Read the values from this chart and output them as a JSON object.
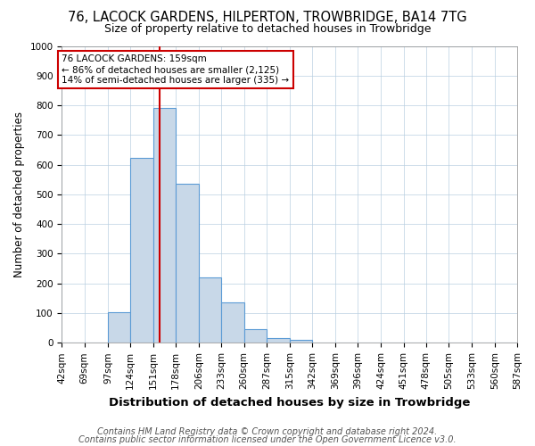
{
  "title": "76, LACOCK GARDENS, HILPERTON, TROWBRIDGE, BA14 7TG",
  "subtitle": "Size of property relative to detached houses in Trowbridge",
  "xlabel": "Distribution of detached houses by size in Trowbridge",
  "ylabel": "Number of detached properties",
  "bin_edges": [
    42,
    69,
    97,
    124,
    151,
    178,
    206,
    233,
    260,
    287,
    315,
    342,
    369,
    396,
    424,
    451,
    478,
    505,
    533,
    560,
    587
  ],
  "bin_values": [
    0,
    0,
    103,
    622,
    790,
    535,
    220,
    135,
    45,
    15,
    10,
    0,
    0,
    0,
    0,
    0,
    0,
    0,
    0,
    0
  ],
  "property_size": 159,
  "bar_color": "#c8d8e8",
  "bar_edge_color": "#5b9bd5",
  "vline_color": "#cc0000",
  "annotation_text": "76 LACOCK GARDENS: 159sqm\n← 86% of detached houses are smaller (2,125)\n14% of semi-detached houses are larger (335) →",
  "annotation_box_color": "white",
  "annotation_box_edge_color": "#cc0000",
  "footnote1": "Contains HM Land Registry data © Crown copyright and database right 2024.",
  "footnote2": "Contains public sector information licensed under the Open Government Licence v3.0.",
  "ylim": [
    0,
    1000
  ],
  "yticks": [
    0,
    100,
    200,
    300,
    400,
    500,
    600,
    700,
    800,
    900,
    1000
  ],
  "title_fontsize": 10.5,
  "subtitle_fontsize": 9,
  "xlabel_fontsize": 9.5,
  "ylabel_fontsize": 8.5,
  "tick_fontsize": 7.5,
  "annotation_fontsize": 7.5,
  "footnote_fontsize": 7
}
